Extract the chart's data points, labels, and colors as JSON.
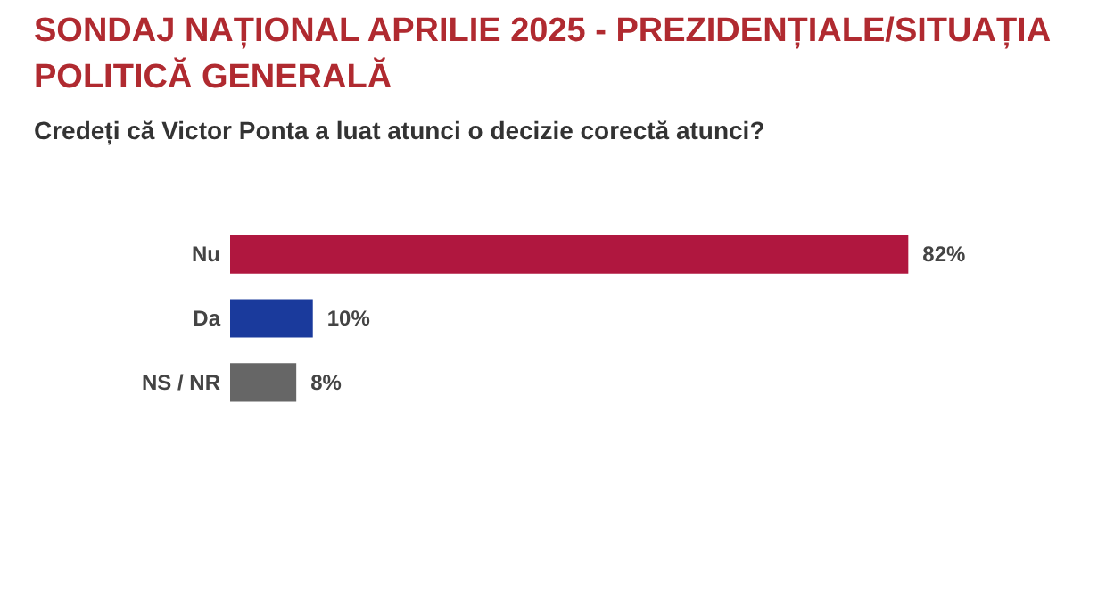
{
  "chart_data": {
    "type": "bar",
    "orientation": "horizontal",
    "title": "SONDAJ NAȚIONAL APRILIE 2025 - PREZIDENȚIALE/SITUAȚIA POLITICĂ GENERALĂ",
    "subtitle": "Credeți că Victor Ponta a luat atunci o decizie corectă atunci?",
    "categories": [
      "Nu",
      "Da",
      "NS / NR"
    ],
    "values": [
      82,
      10,
      8
    ],
    "colors": [
      "#b0173f",
      "#1a3a9c",
      "#666666"
    ],
    "value_labels": [
      "82%",
      "10%",
      "8%"
    ]
  }
}
